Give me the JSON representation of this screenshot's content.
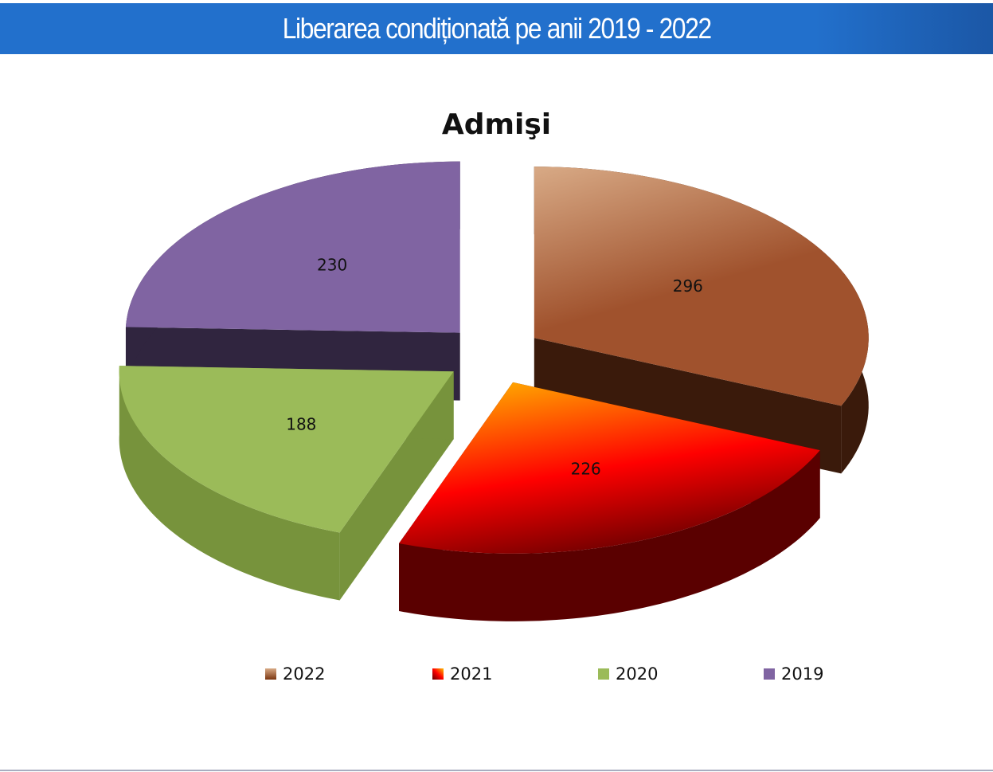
{
  "header": {
    "title": "Liberarea condiționată pe anii 2019 - 2022"
  },
  "chart_data": {
    "type": "pie",
    "title": "Admişi",
    "categories": [
      "2022",
      "2021",
      "2020",
      "2019"
    ],
    "values": [
      296,
      226,
      188,
      230
    ],
    "legend_position": "bottom",
    "colors": {
      "2022": {
        "light": "#d8aa86",
        "mid": "#a0522d",
        "dark": "#3a1a0b"
      },
      "2021": {
        "light": "#ffc000",
        "mid": "#ff0000",
        "dark": "#5a0000"
      },
      "2020": {
        "light": "#9bbb59",
        "mid": "#9bbb59",
        "dark": "#77933c"
      },
      "2019": {
        "light": "#8064a2",
        "mid": "#8064a2",
        "dark": "#30253f"
      }
    }
  }
}
